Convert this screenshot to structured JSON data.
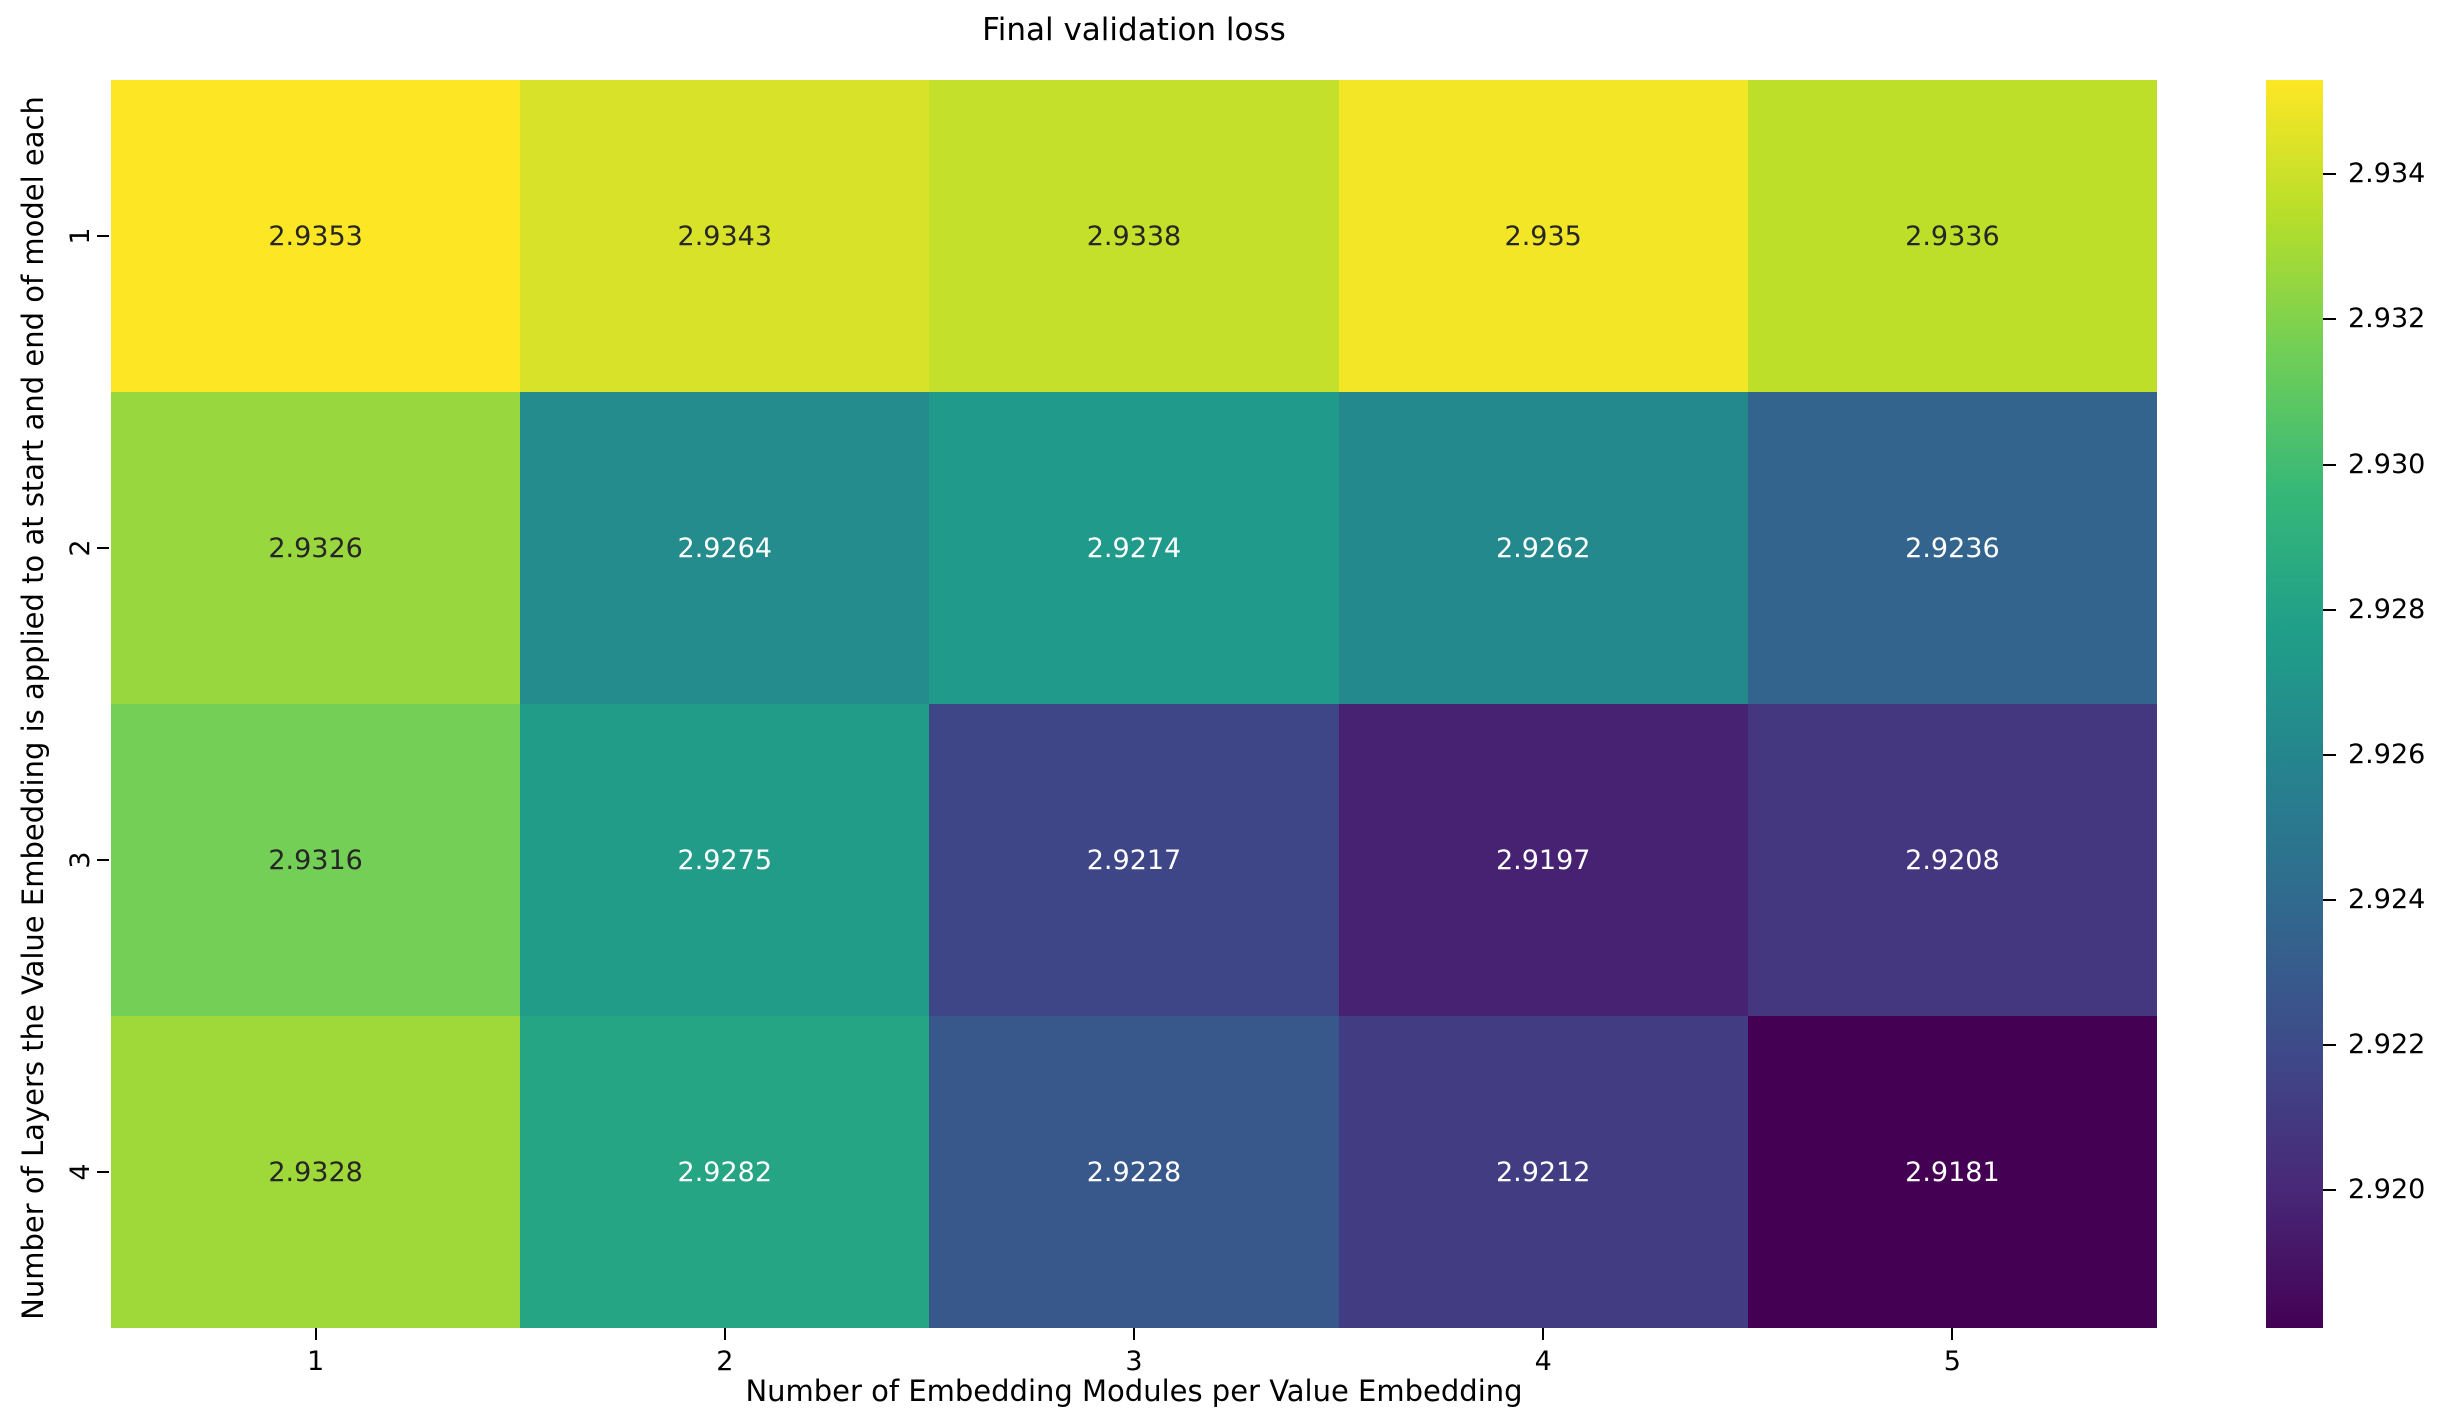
{
  "title": "Final validation loss",
  "chart_data": {
    "type": "heatmap",
    "title": "Final validation loss",
    "xlabel": "Number of Embedding Modules per Value Embedding",
    "ylabel": "Number of Layers the Value Embedding is applied to at start and end of model each",
    "x_ticks": [
      "1",
      "2",
      "3",
      "4",
      "5"
    ],
    "y_ticks": [
      "1",
      "2",
      "3",
      "4"
    ],
    "values": [
      [
        2.9353,
        2.9343,
        2.9338,
        2.935,
        2.9336
      ],
      [
        2.9326,
        2.9264,
        2.9274,
        2.9262,
        2.9236
      ],
      [
        2.9316,
        2.9275,
        2.9217,
        2.9197,
        2.9208
      ],
      [
        2.9328,
        2.9282,
        2.9228,
        2.9212,
        2.9181
      ]
    ],
    "vmin": 2.9181,
    "vmax": 2.9353,
    "colormap": "viridis",
    "colormap_stops": [
      "#440154",
      "#482878",
      "#3e4a89",
      "#31688e",
      "#26828e",
      "#1f9e89",
      "#35b779",
      "#6ece58",
      "#b5de2b",
      "#fde725"
    ],
    "colorbar_tick_labels": [
      "2.934",
      "2.932",
      "2.930",
      "2.928",
      "2.926",
      "2.924",
      "2.922",
      "2.920"
    ],
    "annotation_color_dark": "#262626",
    "annotation_color_light": "#ffffff",
    "legend_position": "right-colorbar",
    "grid": false
  }
}
